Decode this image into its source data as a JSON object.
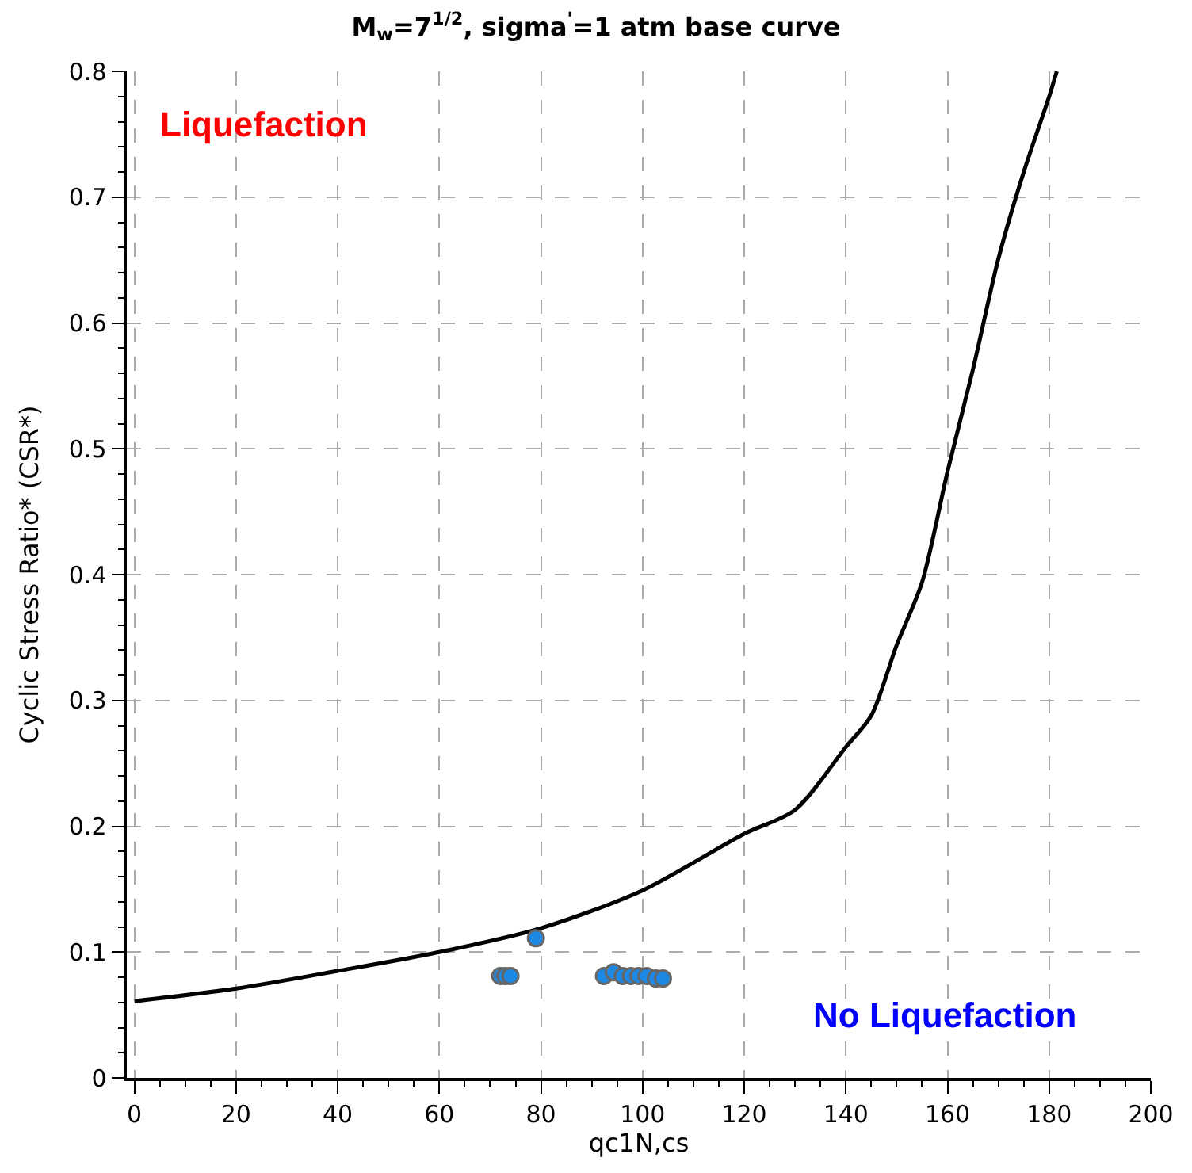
{
  "chart_data": {
    "type": "scatter",
    "title": "M$_{w}$=7$^{1/2}$, sigma$^{'}$=1 atm base curve",
    "xlabel": "qc1N,cs",
    "ylabel": "Cyclic Stress Ratio* (CSR*)",
    "annotations": [
      "Liquefaction",
      "No Liquefaction"
    ],
    "series": [
      {
        "type": "line",
        "color": "#000000",
        "marker": "none",
        "x": [
          0,
          20,
          40,
          60,
          80,
          100,
          120,
          130,
          140,
          145,
          150,
          155,
          160,
          165,
          170,
          175,
          180,
          181.5
        ],
        "values": [
          0.061,
          0.071,
          0.085,
          0.1,
          0.119,
          0.149,
          0.194,
          0.213,
          0.263,
          0.288,
          0.344,
          0.394,
          0.482,
          0.563,
          0.651,
          0.72,
          0.78,
          0.8
        ]
      },
      {
        "color": "#1e88e5",
        "marker": "circle",
        "x": [
          72,
          73,
          74,
          79,
          92.4,
          94.3,
          96.1,
          97.7,
          99.2,
          100.8,
          102.6,
          104
        ],
        "values": [
          0.081,
          0.081,
          0.081,
          0.111,
          0.081,
          0.084,
          0.081,
          0.081,
          0.081,
          0.081,
          0.079,
          0.079
        ]
      }
    ],
    "xlim": [
      -1.5,
      200
    ],
    "xticks": [
      0,
      20,
      40,
      60,
      80,
      100,
      120,
      140,
      160,
      180,
      200
    ],
    "ylim": [
      0,
      0.8
    ],
    "yticks": [
      0,
      0.1,
      0.2,
      0.3,
      0.4,
      0.5,
      0.6,
      0.7,
      0.8
    ],
    "grid": true
  }
}
